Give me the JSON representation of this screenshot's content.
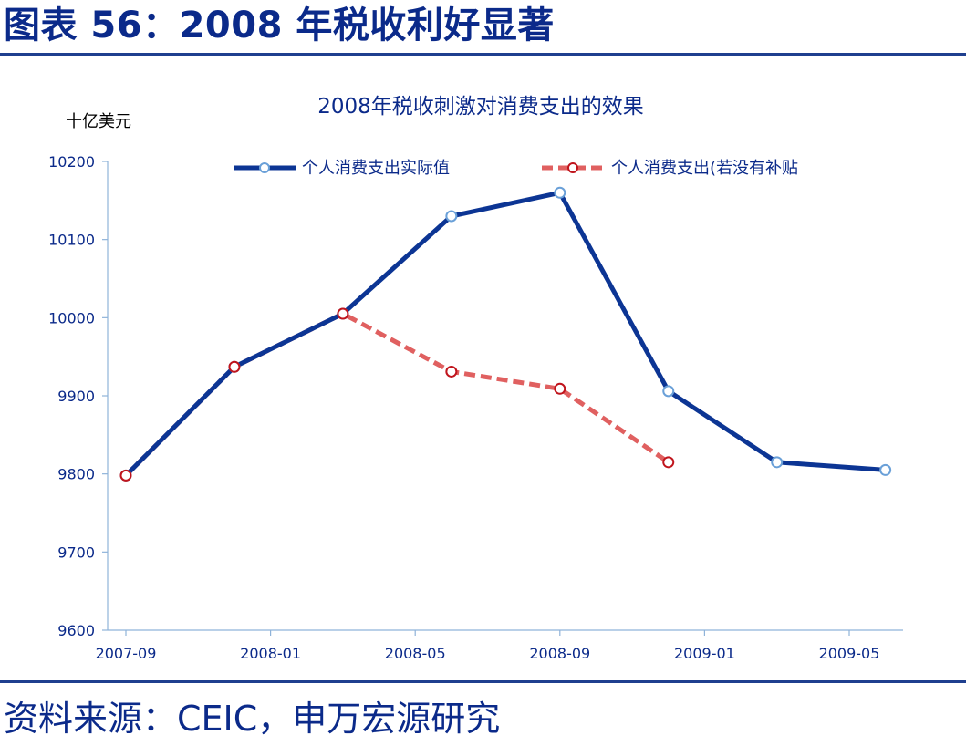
{
  "header": {
    "figure_title": "图表 56：2008 年税收利好显著"
  },
  "footer": {
    "source": "资料来源：CEIC，申万宏源研究"
  },
  "chart_data": {
    "type": "line",
    "title": "2008年税收刺激对消费支出的效果",
    "y_unit_label": "十亿美元",
    "ylim": [
      9600,
      10200
    ],
    "y_ticks": [
      9600,
      9700,
      9800,
      9900,
      10000,
      10100,
      10200
    ],
    "y_tick_labels": [
      "9600",
      "9700",
      "9800",
      "9900",
      "10000",
      "10100",
      "10200"
    ],
    "x_ticks": [
      "2007-09",
      "2008-01",
      "2008-05",
      "2008-09",
      "2009-01",
      "2009-05"
    ],
    "x": [
      "2007-09",
      "2007-12",
      "2008-03",
      "2008-06",
      "2008-09",
      "2008-12",
      "2009-03",
      "2009-06"
    ],
    "grid": false,
    "legend_position": "top",
    "series": [
      {
        "name": "个人消费支出实际值",
        "values": [
          9798,
          9937,
          10005,
          10130,
          10160,
          9906,
          9815,
          9805
        ],
        "color": "#0c3594",
        "style": "solid",
        "marker_color": "#6aa0d8"
      },
      {
        "name": "个人消费支出(若没有补贴",
        "values": [
          9798,
          9937,
          10005,
          9931,
          9909,
          9815,
          null,
          null
        ],
        "color": "#e06060",
        "style": "dashed",
        "marker_color": "#c0141c"
      }
    ]
  }
}
